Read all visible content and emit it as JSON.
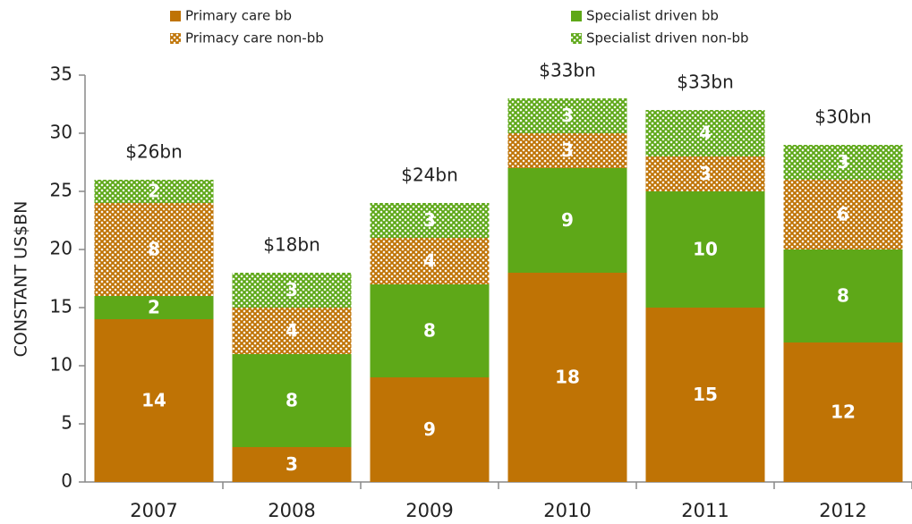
{
  "chart_data": {
    "type": "stacked_bar",
    "categories": [
      "2007",
      "2008",
      "2009",
      "2010",
      "2011",
      "2012"
    ],
    "series": [
      {
        "name": "Primary care bb",
        "color": "#bf7305",
        "pattern": "solid",
        "values": [
          14,
          3,
          9,
          18,
          15,
          12
        ]
      },
      {
        "name": "Specialist driven bb",
        "color": "#5ea818",
        "pattern": "solid",
        "values": [
          2,
          8,
          8,
          9,
          10,
          8
        ]
      },
      {
        "name": "Primacy care non-bb",
        "color": "#bf7305",
        "pattern": "hatch",
        "values": [
          8,
          4,
          4,
          3,
          3,
          6
        ]
      },
      {
        "name": "Specialist driven non-bb",
        "color": "#5ea818",
        "pattern": "hatch",
        "values": [
          2,
          3,
          3,
          3,
          4,
          3
        ]
      }
    ],
    "annotations": [
      "$26bn",
      "$18bn",
      "$24bn",
      "$33bn",
      "$33bn",
      "$30bn"
    ],
    "ylabel": "CONSTANT US$BN",
    "ylim": [
      0,
      35
    ],
    "yticks": [
      0,
      5,
      10,
      15,
      20,
      25,
      30,
      35
    ]
  }
}
